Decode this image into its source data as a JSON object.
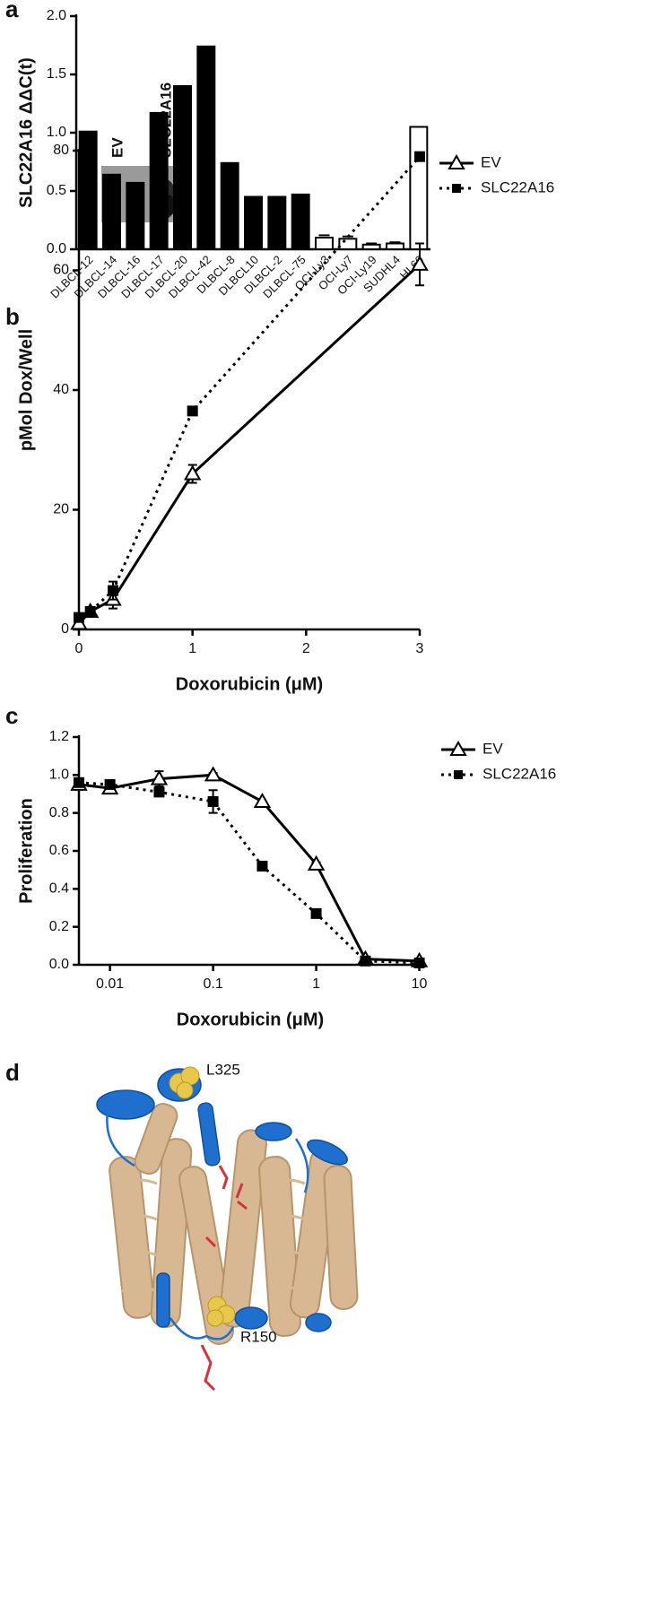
{
  "panels": [
    "a",
    "b",
    "c",
    "d"
  ],
  "inset_labels": [
    "EV",
    "SLC22A16"
  ],
  "structure_labels": [
    "L325",
    "R150"
  ],
  "chart_data": [
    {
      "type": "bar",
      "y_label": "SLC22A16 ΔΔC(t)",
      "categories": [
        "DLBCL-12",
        "DLBCL-14",
        "DLBCL-16",
        "DLBCL-17",
        "DLBCL-20",
        "DLBCL-42",
        "DLBCL-8",
        "DLBCL10",
        "DLBCL-2",
        "DLBCL-75",
        "OCI-Ly3",
        "OCI-Ly7",
        "OCI-Ly19",
        "SUDHL4",
        "HL60"
      ],
      "values": [
        1.01,
        0.64,
        0.57,
        1.17,
        1.4,
        1.74,
        0.74,
        0.45,
        0.45,
        0.47,
        0.1,
        0.09,
        0.04,
        0.05,
        1.05
      ],
      "errors": [
        null,
        null,
        null,
        null,
        null,
        null,
        null,
        null,
        null,
        null,
        0.02,
        0.02,
        0.01,
        0.01,
        null
      ],
      "colors": [
        "#000000",
        "#000000",
        "#000000",
        "#000000",
        "#000000",
        "#000000",
        "#000000",
        "#000000",
        "#000000",
        "#000000",
        "#ffffff",
        "#ffffff",
        "#ffffff",
        "#ffffff",
        "#ffffff"
      ],
      "ylim": [
        0,
        2.0
      ],
      "yticks": [
        {
          "value": 0,
          "label": "0.0"
        },
        {
          "value": 0.5,
          "label": "0.5"
        },
        {
          "value": 1.0,
          "label": "1.0"
        },
        {
          "value": 1.5,
          "label": "1.5"
        },
        {
          "value": 2.0,
          "label": "2.0"
        }
      ]
    },
    {
      "type": "line",
      "x_label": "Doxorubicin (μM)",
      "y_label": "pMol Dox/Well",
      "xscale": "linear",
      "legend": "right",
      "x": [
        0,
        0.1,
        0.3,
        1,
        3
      ],
      "series": [
        {
          "name": "EV",
          "color": "#000000",
          "marker": "triangle",
          "dash": false,
          "values": [
            1,
            3,
            5,
            26,
            61
          ],
          "errors": [
            null,
            null,
            1.5,
            1.5,
            3.5
          ]
        },
        {
          "name": "SLC22A16",
          "color": "#000000",
          "marker": "square",
          "dash": true,
          "values": [
            2,
            3,
            6.5,
            36.5,
            79
          ],
          "errors": [
            null,
            null,
            1.5,
            null,
            null
          ]
        }
      ],
      "xlim": [
        0,
        3
      ],
      "xticks": [
        0,
        1,
        2,
        3
      ],
      "ylim": [
        0,
        80
      ],
      "yticks": [
        0,
        20,
        40,
        60,
        80
      ]
    },
    {
      "type": "line",
      "x_label": "Doxorubicin (μM)",
      "y_label": "Proliferation",
      "xscale": "log",
      "legend": "right",
      "x": [
        0.005,
        0.01,
        0.03,
        0.1,
        0.3,
        1,
        3,
        10
      ],
      "series": [
        {
          "name": "EV",
          "color": "#000000",
          "marker": "triangle",
          "dash": false,
          "values": [
            0.95,
            0.93,
            0.98,
            1.0,
            0.86,
            0.53,
            0.03,
            0.02
          ],
          "errors": [
            null,
            0.02,
            0.04,
            0.01,
            null,
            0.01,
            null,
            null
          ]
        },
        {
          "name": "SLC22A16",
          "color": "#000000",
          "marker": "square",
          "dash": true,
          "values": [
            0.96,
            0.95,
            0.91,
            0.86,
            0.52,
            0.27,
            0.02,
            0.01
          ],
          "errors": [
            null,
            0.01,
            0.01,
            0.06,
            0.02,
            null,
            null,
            null
          ]
        }
      ],
      "xlim": [
        0.005,
        10.5
      ],
      "xticks": [
        0.01,
        0.1,
        1,
        10
      ],
      "ylim": [
        0,
        1.2
      ],
      "yticks": [
        {
          "value": 0,
          "label": "0.0"
        },
        {
          "value": 0.2,
          "label": "0.2"
        },
        {
          "value": 0.4,
          "label": "0.4"
        },
        {
          "value": 0.6,
          "label": "0.6"
        },
        {
          "value": 0.8,
          "label": "0.8"
        },
        {
          "value": 1.0,
          "label": "1.0"
        },
        {
          "value": 1.2,
          "label": "1.2"
        }
      ]
    }
  ]
}
